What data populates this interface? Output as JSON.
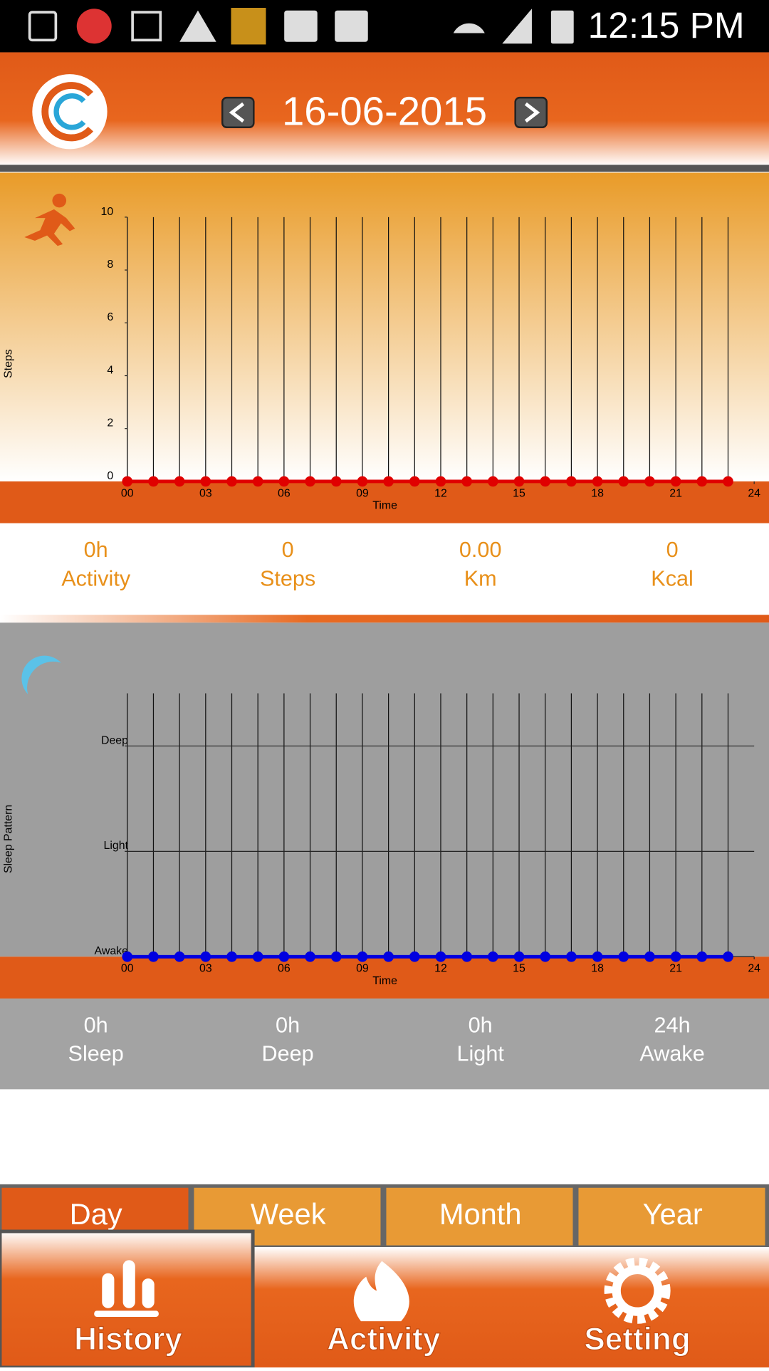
{
  "status_bar": {
    "time": "12:15 PM"
  },
  "header": {
    "date": "16-06-2015"
  },
  "chart_data": [
    {
      "type": "line",
      "x_label": "Time",
      "y_label": "Steps",
      "x": [
        0,
        1,
        2,
        3,
        4,
        5,
        6,
        7,
        8,
        9,
        10,
        11,
        12,
        13,
        14,
        15,
        16,
        17,
        18,
        19,
        20,
        21,
        22,
        23
      ],
      "values": [
        0,
        0,
        0,
        0,
        0,
        0,
        0,
        0,
        0,
        0,
        0,
        0,
        0,
        0,
        0,
        0,
        0,
        0,
        0,
        0,
        0,
        0,
        0,
        0
      ],
      "color": "#e00000",
      "xlim": [
        0,
        24
      ],
      "xticks": [
        {
          "value": 0,
          "label": "00"
        },
        {
          "value": 3,
          "label": "03"
        },
        {
          "value": 6,
          "label": "06"
        },
        {
          "value": 9,
          "label": "09"
        },
        12,
        15,
        18,
        21,
        24
      ],
      "ylim": [
        0,
        10
      ],
      "yticks": [
        0,
        2,
        4,
        6,
        8,
        10
      ],
      "grid": false
    },
    {
      "type": "line",
      "x_label": "Time",
      "y_label": "Sleep Pattern",
      "x": [
        0,
        1,
        2,
        3,
        4,
        5,
        6,
        7,
        8,
        9,
        10,
        11,
        12,
        13,
        14,
        15,
        16,
        17,
        18,
        19,
        20,
        21,
        22,
        23
      ],
      "values": [
        0,
        0,
        0,
        0,
        0,
        0,
        0,
        0,
        0,
        0,
        0,
        0,
        0,
        0,
        0,
        0,
        0,
        0,
        0,
        0,
        0,
        0,
        0,
        0
      ],
      "color": "#0000e0",
      "xlim": [
        0,
        24
      ],
      "xticks": [
        {
          "value": 0,
          "label": "00"
        },
        {
          "value": 3,
          "label": "03"
        },
        {
          "value": 6,
          "label": "06"
        },
        {
          "value": 9,
          "label": "09"
        },
        12,
        15,
        18,
        21,
        24
      ],
      "ylim": [
        0,
        2.5
      ],
      "yticks": [
        {
          "value": 0,
          "label": "Awake"
        },
        {
          "value": 1,
          "label": "Light"
        },
        {
          "value": 2,
          "label": "Deep"
        }
      ],
      "grid": true
    }
  ],
  "activity_stats": [
    {
      "value": "0h",
      "label": "Activity"
    },
    {
      "value": "0",
      "label": "Steps"
    },
    {
      "value": "0.00",
      "label": "Km"
    },
    {
      "value": "0",
      "label": "Kcal"
    }
  ],
  "sleep_stats": [
    {
      "value": "0h",
      "label": "Sleep"
    },
    {
      "value": "0h",
      "label": "Deep"
    },
    {
      "value": "0h",
      "label": "Light"
    },
    {
      "value": "24h",
      "label": "Awake"
    }
  ],
  "period_tabs": [
    "Day",
    "Week",
    "Month",
    "Year"
  ],
  "nav": [
    "History",
    "Activity",
    "Setting"
  ]
}
